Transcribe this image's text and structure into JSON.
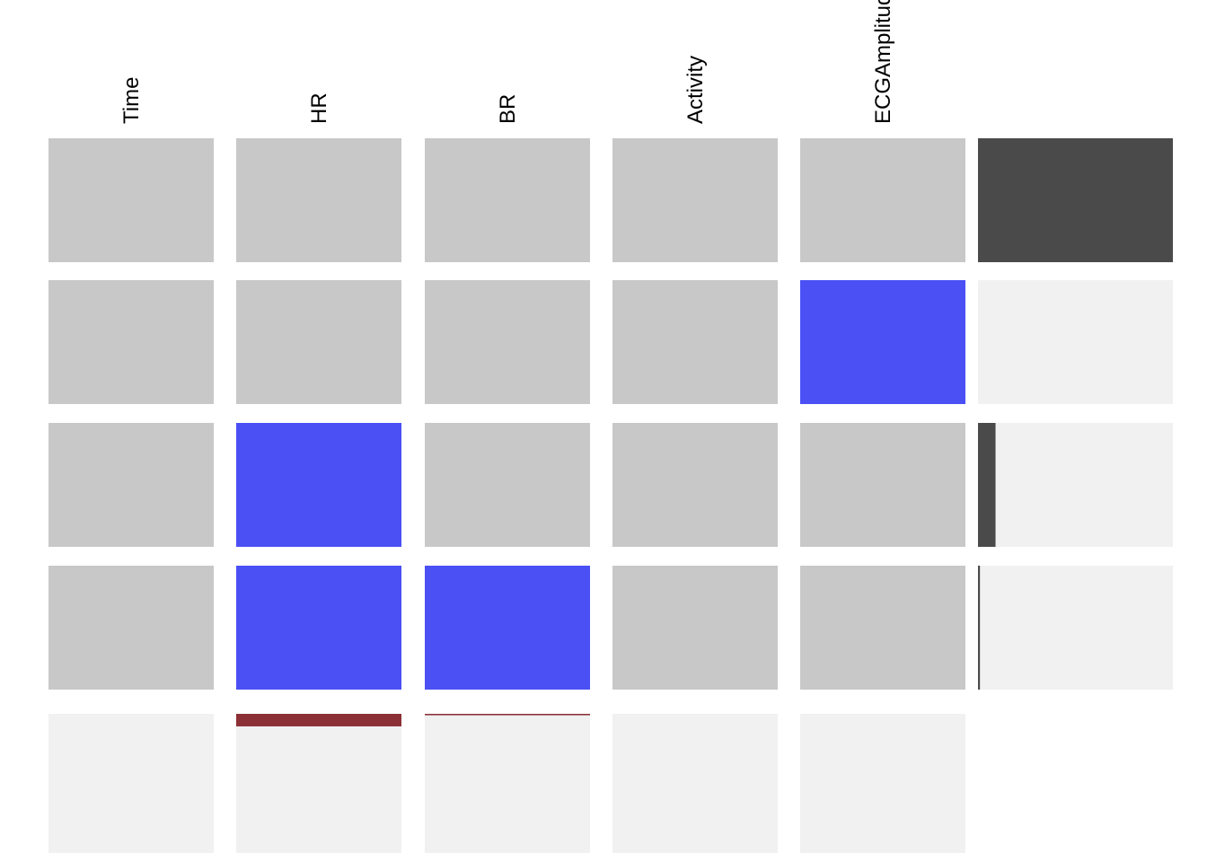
{
  "chart_data": {
    "type": "heatmap",
    "title": "",
    "variables": [
      "Time",
      "HR",
      "BR",
      "Activity",
      "ECGAmplitude"
    ],
    "patterns": [
      {
        "missing": [
          0,
          0,
          0,
          0,
          0
        ],
        "proportion": 1.0
      },
      {
        "missing": [
          0,
          0,
          0,
          0,
          1
        ],
        "proportion": 0.0
      },
      {
        "missing": [
          0,
          1,
          0,
          0,
          0
        ],
        "proportion": 0.09
      },
      {
        "missing": [
          0,
          1,
          1,
          0,
          0
        ],
        "proportion": 0.01
      }
    ],
    "missing_by_variable": [
      0.0,
      0.09,
      0.01,
      0.0,
      0.0
    ],
    "colors": {
      "observed": "#c8c8c8",
      "missing": "#4b50f5",
      "pattern_bar": "#4a4a4a",
      "variable_bar": "#8b3035",
      "background": "#f1f1f1"
    }
  }
}
